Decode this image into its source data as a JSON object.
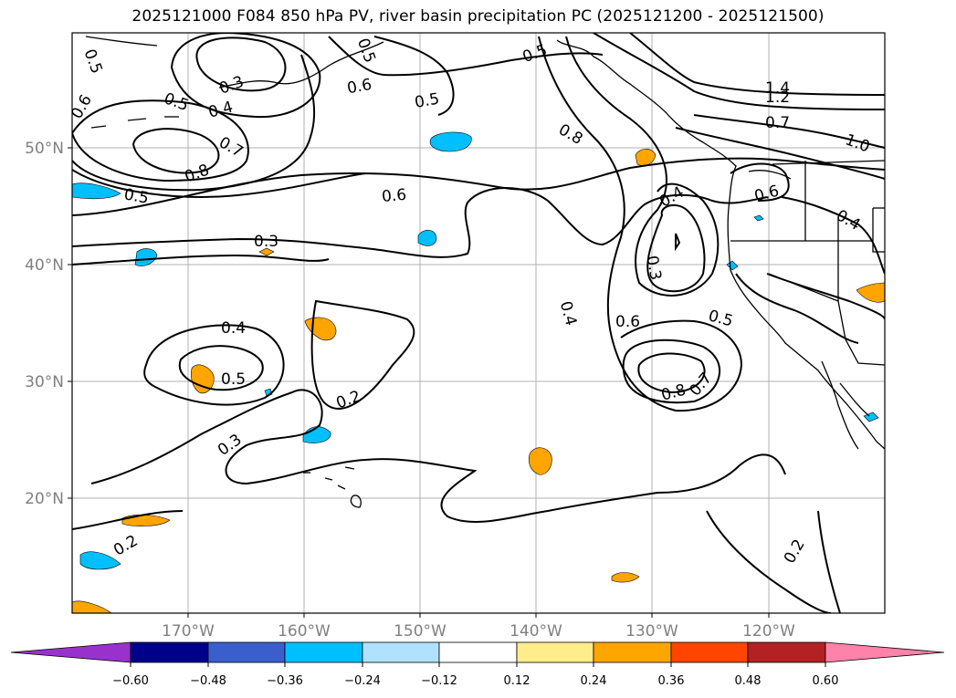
{
  "title": "2025121000 F084 850 hPa PV, river basin precipitation PC (2025121200 - 2025121500)",
  "axes": {
    "lat_labels": [
      "50°N",
      "40°N",
      "30°N",
      "20°N"
    ],
    "lon_labels": [
      "170°W",
      "160°W",
      "150°W",
      "140°W",
      "130°W",
      "120°W"
    ]
  },
  "contour_labels": [
    "0.5",
    "0.3",
    "0.4",
    "0.5",
    "0.6",
    "0.5",
    "0.5",
    "0.5",
    "0.6",
    "0.7",
    "0.8",
    "0.5",
    "0.6",
    "0.8",
    "1.4",
    "1.2",
    "0.7",
    "1.0",
    "0.6",
    "0.4",
    "0.3",
    "0.4",
    "0.3",
    "0.4",
    "0.6",
    "0.5",
    "0.4",
    "0.5",
    "0.2",
    "0.3",
    "0.8",
    "0.7",
    "0.2",
    "0.2"
  ],
  "colorbar": {
    "ticks": [
      "−0.60",
      "−0.48",
      "−0.36",
      "−0.24",
      "−0.12",
      "0.12",
      "0.24",
      "0.36",
      "0.48",
      "0.60"
    ],
    "colors": [
      "#9932CC",
      "#00008B",
      "#3A5FCD",
      "#00BFFF",
      "#B0E2FF",
      "#FFFFFF",
      "#FFEC8B",
      "#FFA500",
      "#FF4500",
      "#B22222",
      "#FF82AB"
    ]
  }
}
